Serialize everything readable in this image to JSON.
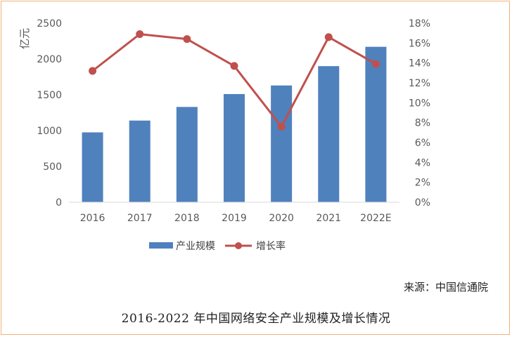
{
  "chart_data": {
    "type": "bar+line",
    "categories": [
      "2016",
      "2017",
      "2018",
      "2019",
      "2020",
      "2021",
      "2022E"
    ],
    "series": [
      {
        "name": "产业规模",
        "type": "bar",
        "axis": "left",
        "color": "#4f81bd",
        "values": [
          975,
          1140,
          1330,
          1510,
          1630,
          1900,
          2170
        ]
      },
      {
        "name": "增长率",
        "type": "line",
        "axis": "right",
        "color": "#c0504d",
        "values": [
          13.2,
          16.9,
          16.4,
          13.7,
          7.6,
          16.6,
          13.9
        ]
      }
    ],
    "y_left": {
      "label": "亿元",
      "min": 0,
      "max": 2500,
      "ticks": [
        "0",
        "500",
        "1000",
        "1500",
        "2000",
        "2500"
      ]
    },
    "y_right": {
      "min": 0,
      "max": 18,
      "ticks": [
        "0%",
        "2%",
        "4%",
        "6%",
        "8%",
        "10%",
        "12%",
        "14%",
        "16%",
        "18%"
      ]
    },
    "legend": "bottom",
    "grid": false
  },
  "source": "来源：中国信通院",
  "caption": "2016-2022 年中国网络安全产业规模及增长情况"
}
